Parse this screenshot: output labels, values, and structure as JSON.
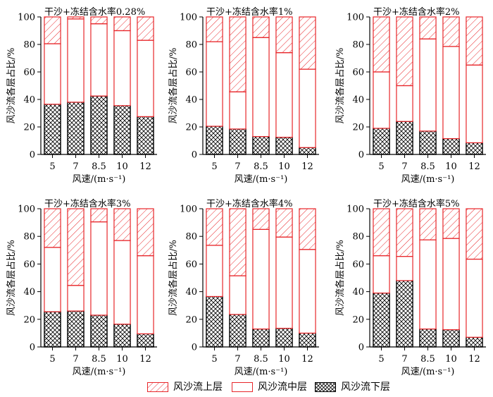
{
  "chart_data": [
    {
      "type": "bar",
      "stacked": true,
      "title": "干沙+冻结含水率0.28%",
      "xlabel": "风速/(m·s⁻¹)",
      "ylabel": "风沙流各层占比/%",
      "categories": [
        "5",
        "7",
        "8.5",
        "10",
        "12"
      ],
      "ylim": [
        0,
        100
      ],
      "yticks": [
        "0",
        "20",
        "40",
        "60",
        "80",
        "100"
      ],
      "series": [
        {
          "name": "风沙流下层",
          "values": [
            36.5,
            38,
            42.5,
            35.5,
            27.5
          ]
        },
        {
          "name": "风沙流中层",
          "values": [
            44,
            60.5,
            52.5,
            54.5,
            55.5
          ]
        },
        {
          "name": "风沙流上层",
          "values": [
            19.5,
            1.5,
            5,
            10,
            17
          ]
        }
      ]
    },
    {
      "type": "bar",
      "stacked": true,
      "title": "干沙+冻结含水率1%",
      "xlabel": "风速/(m·s⁻¹)",
      "ylabel": "风沙流各层占比/%",
      "categories": [
        "5",
        "7",
        "8.5",
        "10",
        "12"
      ],
      "ylim": [
        0,
        100
      ],
      "yticks": [
        "0",
        "20",
        "40",
        "60",
        "80",
        "100"
      ],
      "series": [
        {
          "name": "风沙流下层",
          "values": [
            20.5,
            18.5,
            13,
            12.5,
            5
          ]
        },
        {
          "name": "风沙流中层",
          "values": [
            61.5,
            27,
            72,
            61.5,
            57
          ]
        },
        {
          "name": "风沙流上层",
          "values": [
            18,
            54.5,
            15,
            26,
            38
          ]
        }
      ]
    },
    {
      "type": "bar",
      "stacked": true,
      "title": "干沙+冻结含水率2%",
      "xlabel": "风速/(m·s⁻¹)",
      "ylabel": "风沙流各层占比/%",
      "categories": [
        "5",
        "7",
        "8.5",
        "10",
        "12"
      ],
      "ylim": [
        0,
        100
      ],
      "yticks": [
        "0",
        "20",
        "40",
        "60",
        "80",
        "100"
      ],
      "series": [
        {
          "name": "风沙流下层",
          "values": [
            19,
            24,
            17,
            11.5,
            8.5
          ]
        },
        {
          "name": "风沙流中层",
          "values": [
            41,
            26,
            67,
            67,
            56.5
          ]
        },
        {
          "name": "风沙流上层",
          "values": [
            40,
            50,
            16,
            21.5,
            35
          ]
        }
      ]
    },
    {
      "type": "bar",
      "stacked": true,
      "title": "干沙+冻结含水率3%",
      "xlabel": "风速/(m·s⁻¹)",
      "ylabel": "风沙流各层占比/%",
      "categories": [
        "5",
        "7",
        "8.5",
        "10",
        "12"
      ],
      "ylim": [
        0,
        100
      ],
      "yticks": [
        "0",
        "20",
        "40",
        "60",
        "80",
        "100"
      ],
      "series": [
        {
          "name": "风沙流下层",
          "values": [
            25.5,
            26,
            23,
            16.5,
            9.5
          ]
        },
        {
          "name": "风沙流中层",
          "values": [
            46.5,
            18.5,
            67.5,
            60.5,
            56.5
          ]
        },
        {
          "name": "风沙流上层",
          "values": [
            28,
            55.5,
            9.5,
            23,
            34
          ]
        }
      ]
    },
    {
      "type": "bar",
      "stacked": true,
      "title": "干沙+冻结含水率4%",
      "xlabel": "风速/(m·s⁻¹)",
      "ylabel": "风沙流各层占比/%",
      "categories": [
        "5",
        "7",
        "8.5",
        "10",
        "12"
      ],
      "ylim": [
        0,
        100
      ],
      "yticks": [
        "0",
        "20",
        "40",
        "60",
        "80",
        "100"
      ],
      "series": [
        {
          "name": "风沙流下层",
          "values": [
            36.5,
            23.5,
            13,
            13.5,
            10
          ]
        },
        {
          "name": "风沙流中层",
          "values": [
            37,
            28,
            72,
            66,
            60.5
          ]
        },
        {
          "name": "风沙流上层",
          "values": [
            26.5,
            48.5,
            15,
            20.5,
            29.5
          ]
        }
      ]
    },
    {
      "type": "bar",
      "stacked": true,
      "title": "干沙+冻结含水率5%",
      "xlabel": "风速/(m·s⁻¹)",
      "ylabel": "风沙流各层占比/%",
      "categories": [
        "5",
        "7",
        "8.5",
        "10",
        "12"
      ],
      "ylim": [
        0,
        100
      ],
      "yticks": [
        "0",
        "20",
        "40",
        "60",
        "80",
        "100"
      ],
      "series": [
        {
          "name": "风沙流下层",
          "values": [
            39,
            48,
            13,
            12.5,
            7
          ]
        },
        {
          "name": "风沙流中层",
          "values": [
            27,
            17.5,
            64.5,
            66,
            56.5
          ]
        },
        {
          "name": "风沙流上层",
          "values": [
            34,
            34.5,
            22.5,
            21.5,
            36.5
          ]
        }
      ]
    }
  ],
  "legend": {
    "position": "bottom",
    "items": [
      {
        "label": "风沙流上层",
        "pattern": "diagonal-hatch"
      },
      {
        "label": "风沙流中层",
        "pattern": "empty"
      },
      {
        "label": "风沙流下层",
        "pattern": "cross-hatch"
      }
    ]
  },
  "colors": {
    "bar_outline": "#e8262a",
    "upper_hatch": "#e8262a",
    "lower_outline": "#000000",
    "lower_hatch": "#000000",
    "axis": "#000000",
    "background": "#ffffff"
  }
}
